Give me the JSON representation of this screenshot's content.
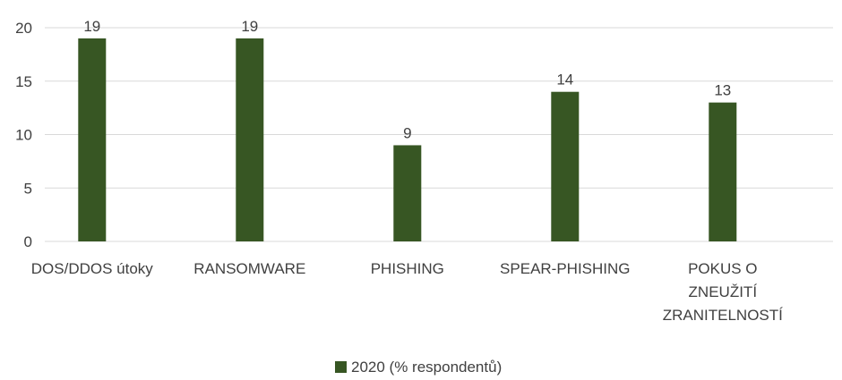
{
  "chart_data": {
    "type": "bar",
    "categories": [
      [
        "DOS/DDOS útoky"
      ],
      [
        "RANSOMWARE"
      ],
      [
        "PHISHING"
      ],
      [
        "SPEAR-PHISHING"
      ],
      [
        "POKUS O",
        "ZNEUŽITÍ",
        "ZRANITELNOSTÍ"
      ]
    ],
    "series": [
      {
        "name": "2020 (% respondentů)",
        "values": [
          19,
          19,
          9,
          14,
          13
        ],
        "color": "#375623"
      }
    ],
    "ylim": [
      0,
      20
    ],
    "yticks": [
      0,
      5,
      10,
      15,
      20
    ],
    "grid": true,
    "legend": "bottom-center",
    "title": "",
    "xlabel": "",
    "ylabel": ""
  }
}
